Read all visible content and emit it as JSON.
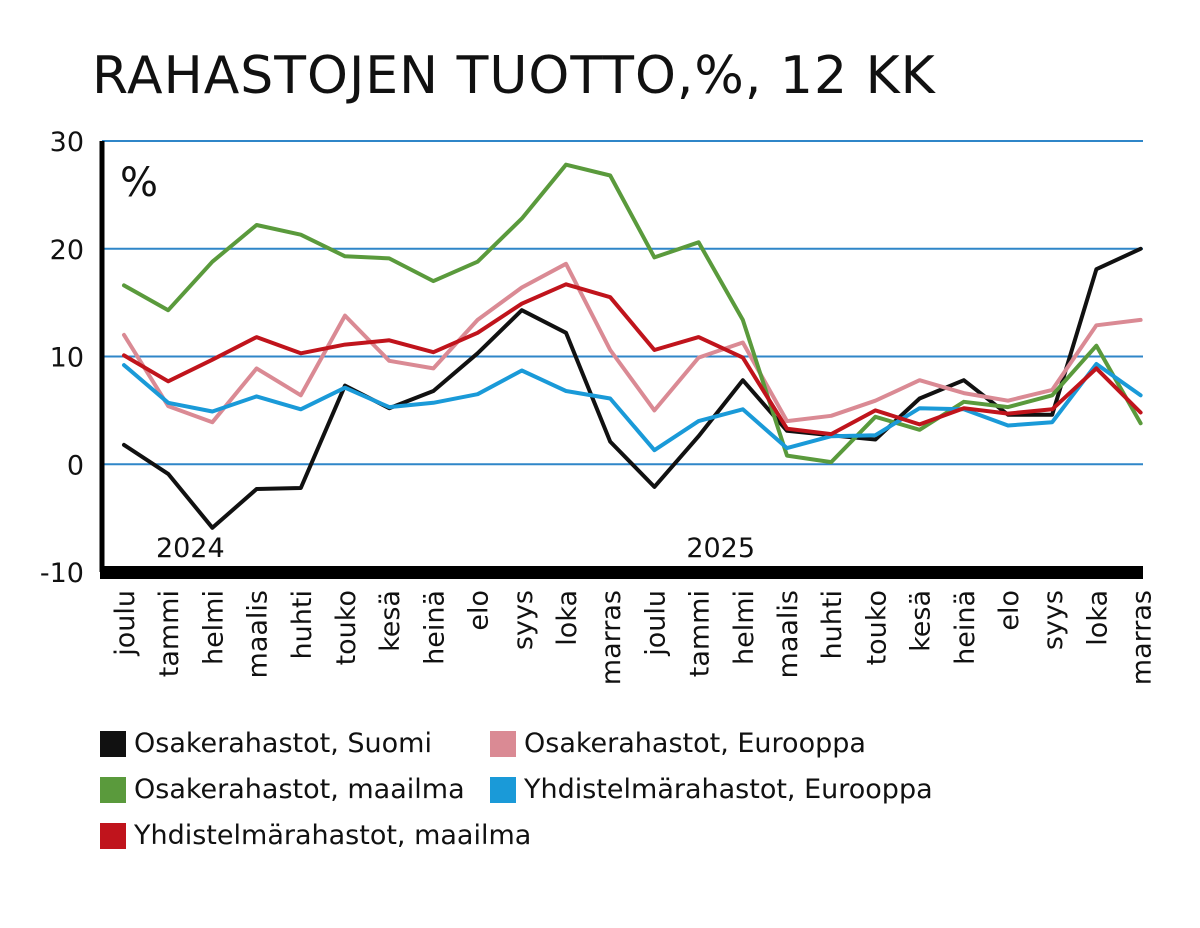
{
  "chart_data": {
    "type": "line",
    "title": "RAHASTOJEN TUOTTO,%, 12 KK",
    "unit_label": "%",
    "ylim": [
      -10,
      30
    ],
    "yticks": [
      30,
      20,
      10,
      0,
      -10
    ],
    "grid": true,
    "categories": [
      "joulu",
      "tammi",
      "helmi",
      "maalis",
      "huhti",
      "touko",
      "kesä",
      "heinä",
      "elo",
      "syys",
      "loka",
      "marras",
      "joulu",
      "tammi",
      "helmi",
      "maalis",
      "huhti",
      "touko",
      "kesä",
      "heinä",
      "elo",
      "syys",
      "loka",
      "marras"
    ],
    "year_labels": [
      {
        "label": "2024",
        "index": 1.5
      },
      {
        "label": "2025",
        "index": 13.5
      }
    ],
    "legend_position": "bottom",
    "series": [
      {
        "name": "Osakerahastot, Suomi",
        "color": "#111111",
        "values": [
          1.8,
          -0.9,
          -5.9,
          -2.3,
          -2.2,
          7.3,
          5.2,
          6.8,
          10.3,
          14.3,
          12.2,
          2.1,
          -2.1,
          2.6,
          7.8,
          3.1,
          2.7,
          2.3,
          6.1,
          7.8,
          4.6,
          4.6,
          18.1,
          20.0
        ]
      },
      {
        "name": "Osakerahastot, Eurooppa",
        "color": "#da8a94",
        "values": [
          12.0,
          5.4,
          3.9,
          8.9,
          6.4,
          13.8,
          9.6,
          8.9,
          13.4,
          16.4,
          18.6,
          10.6,
          5.0,
          9.9,
          11.3,
          4.0,
          4.5,
          5.9,
          7.8,
          6.6,
          5.9,
          6.9,
          12.9,
          13.4
        ]
      },
      {
        "name": "Osakerahastot, maailma",
        "color": "#5a9a3c",
        "values": [
          16.6,
          14.3,
          18.8,
          22.2,
          21.3,
          19.3,
          19.1,
          17.0,
          18.8,
          22.8,
          27.8,
          26.8,
          19.2,
          20.6,
          13.4,
          0.8,
          0.2,
          4.4,
          3.2,
          5.8,
          5.3,
          6.4,
          11.0,
          3.8
        ]
      },
      {
        "name": "Yhdistelmärahastot, Eurooppa",
        "color": "#1a9ad8",
        "values": [
          9.2,
          5.7,
          4.9,
          6.3,
          5.1,
          7.1,
          5.3,
          5.7,
          6.5,
          8.7,
          6.8,
          6.1,
          1.3,
          4.0,
          5.1,
          1.5,
          2.6,
          2.7,
          5.2,
          5.1,
          3.6,
          3.9,
          9.3,
          6.4
        ]
      },
      {
        "name": "Yhdistelmärahastot, maailma",
        "color": "#c0141c",
        "values": [
          10.1,
          7.7,
          9.7,
          11.8,
          10.3,
          11.1,
          11.5,
          10.4,
          12.2,
          14.9,
          16.7,
          15.5,
          10.6,
          11.8,
          9.9,
          3.3,
          2.8,
          5.0,
          3.7,
          5.2,
          4.7,
          5.1,
          8.9,
          4.8
        ]
      }
    ]
  }
}
